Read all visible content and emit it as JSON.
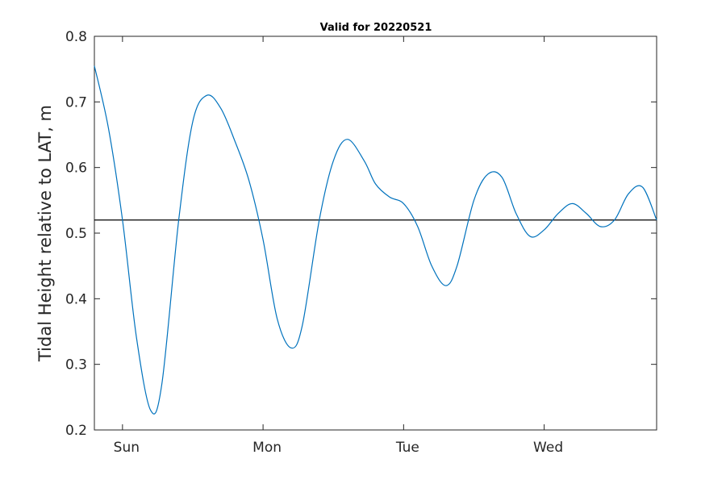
{
  "chart_data": {
    "type": "line",
    "title": "Valid for 20220521",
    "xlabel": "",
    "ylabel": "Tidal Height relative to LAT, m",
    "ylim": [
      0.2,
      0.8
    ],
    "yticks": [
      "0.2",
      "0.3",
      "0.4",
      "0.5",
      "0.6",
      "0.7",
      "0.8"
    ],
    "xlim": [
      -0.2,
      3.8
    ],
    "xticks": [
      {
        "label": "Sun",
        "x": 0
      },
      {
        "label": "Mon",
        "x": 1
      },
      {
        "label": "Tue",
        "x": 2
      },
      {
        "label": "Wed",
        "x": 3
      }
    ],
    "grid": false,
    "legend": "none",
    "reference_line": {
      "y": 0.52,
      "color": "#000000"
    },
    "series": [
      {
        "color": "#0072BD",
        "x": [
          -0.2,
          -0.1,
          0.0,
          0.1,
          0.2,
          0.28,
          0.4,
          0.5,
          0.6,
          0.7,
          0.8,
          0.9,
          1.0,
          1.1,
          1.2,
          1.28,
          1.4,
          1.5,
          1.6,
          1.72,
          1.8,
          1.9,
          2.0,
          2.1,
          2.2,
          2.3,
          2.38,
          2.5,
          2.6,
          2.7,
          2.8,
          2.9,
          3.0,
          3.1,
          3.2,
          3.3,
          3.4,
          3.5,
          3.6,
          3.7,
          3.8
        ],
        "y": [
          0.755,
          0.66,
          0.52,
          0.34,
          0.23,
          0.27,
          0.52,
          0.67,
          0.71,
          0.69,
          0.64,
          0.58,
          0.49,
          0.37,
          0.325,
          0.36,
          0.52,
          0.61,
          0.643,
          0.61,
          0.575,
          0.555,
          0.545,
          0.51,
          0.45,
          0.42,
          0.45,
          0.55,
          0.59,
          0.585,
          0.53,
          0.495,
          0.505,
          0.53,
          0.545,
          0.53,
          0.51,
          0.52,
          0.56,
          0.57,
          0.52
        ]
      }
    ]
  }
}
